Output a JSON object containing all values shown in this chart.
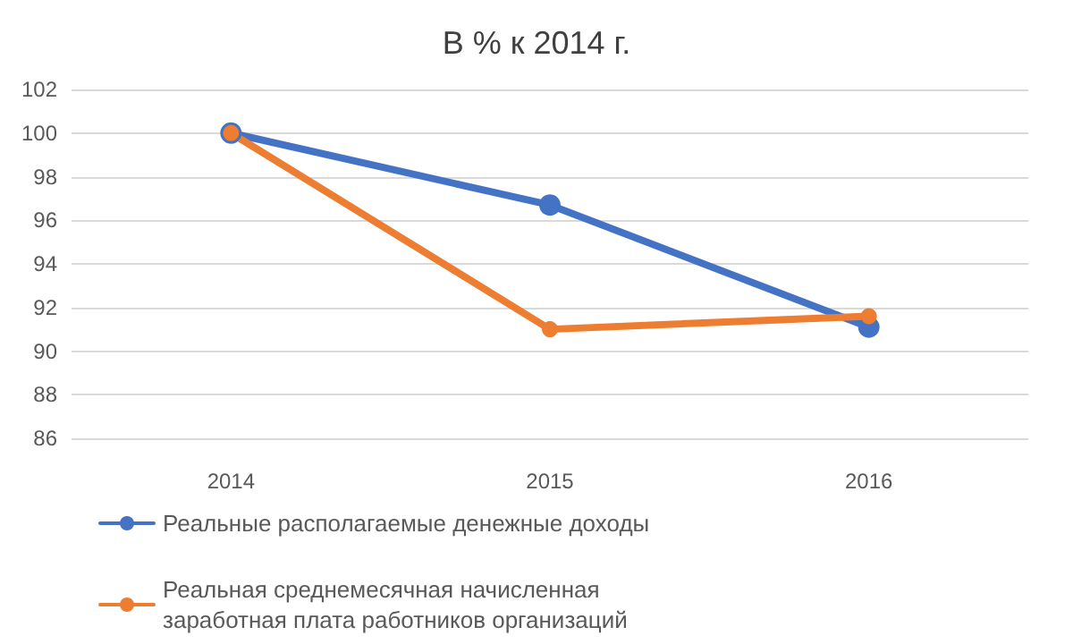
{
  "chart_data": {
    "type": "line",
    "title": "В % к 2014 г.",
    "categories": [
      "2014",
      "2015",
      "2016"
    ],
    "series": [
      {
        "name": "Реальные располагаемые денежные доходы",
        "color": "#4472c4",
        "values": [
          100,
          96.7,
          91.1
        ]
      },
      {
        "name": "Реальная среднемесячная начисленная заработная плата работников организаций",
        "color": "#ed7d31",
        "values": [
          100,
          91.0,
          91.6
        ]
      }
    ],
    "ylim": [
      86,
      102
    ],
    "yticks": [
      86,
      88,
      90,
      92,
      94,
      96,
      98,
      100,
      102
    ],
    "grid": "y",
    "legend": "bottom",
    "marker": "circle",
    "line_style": "solid"
  }
}
